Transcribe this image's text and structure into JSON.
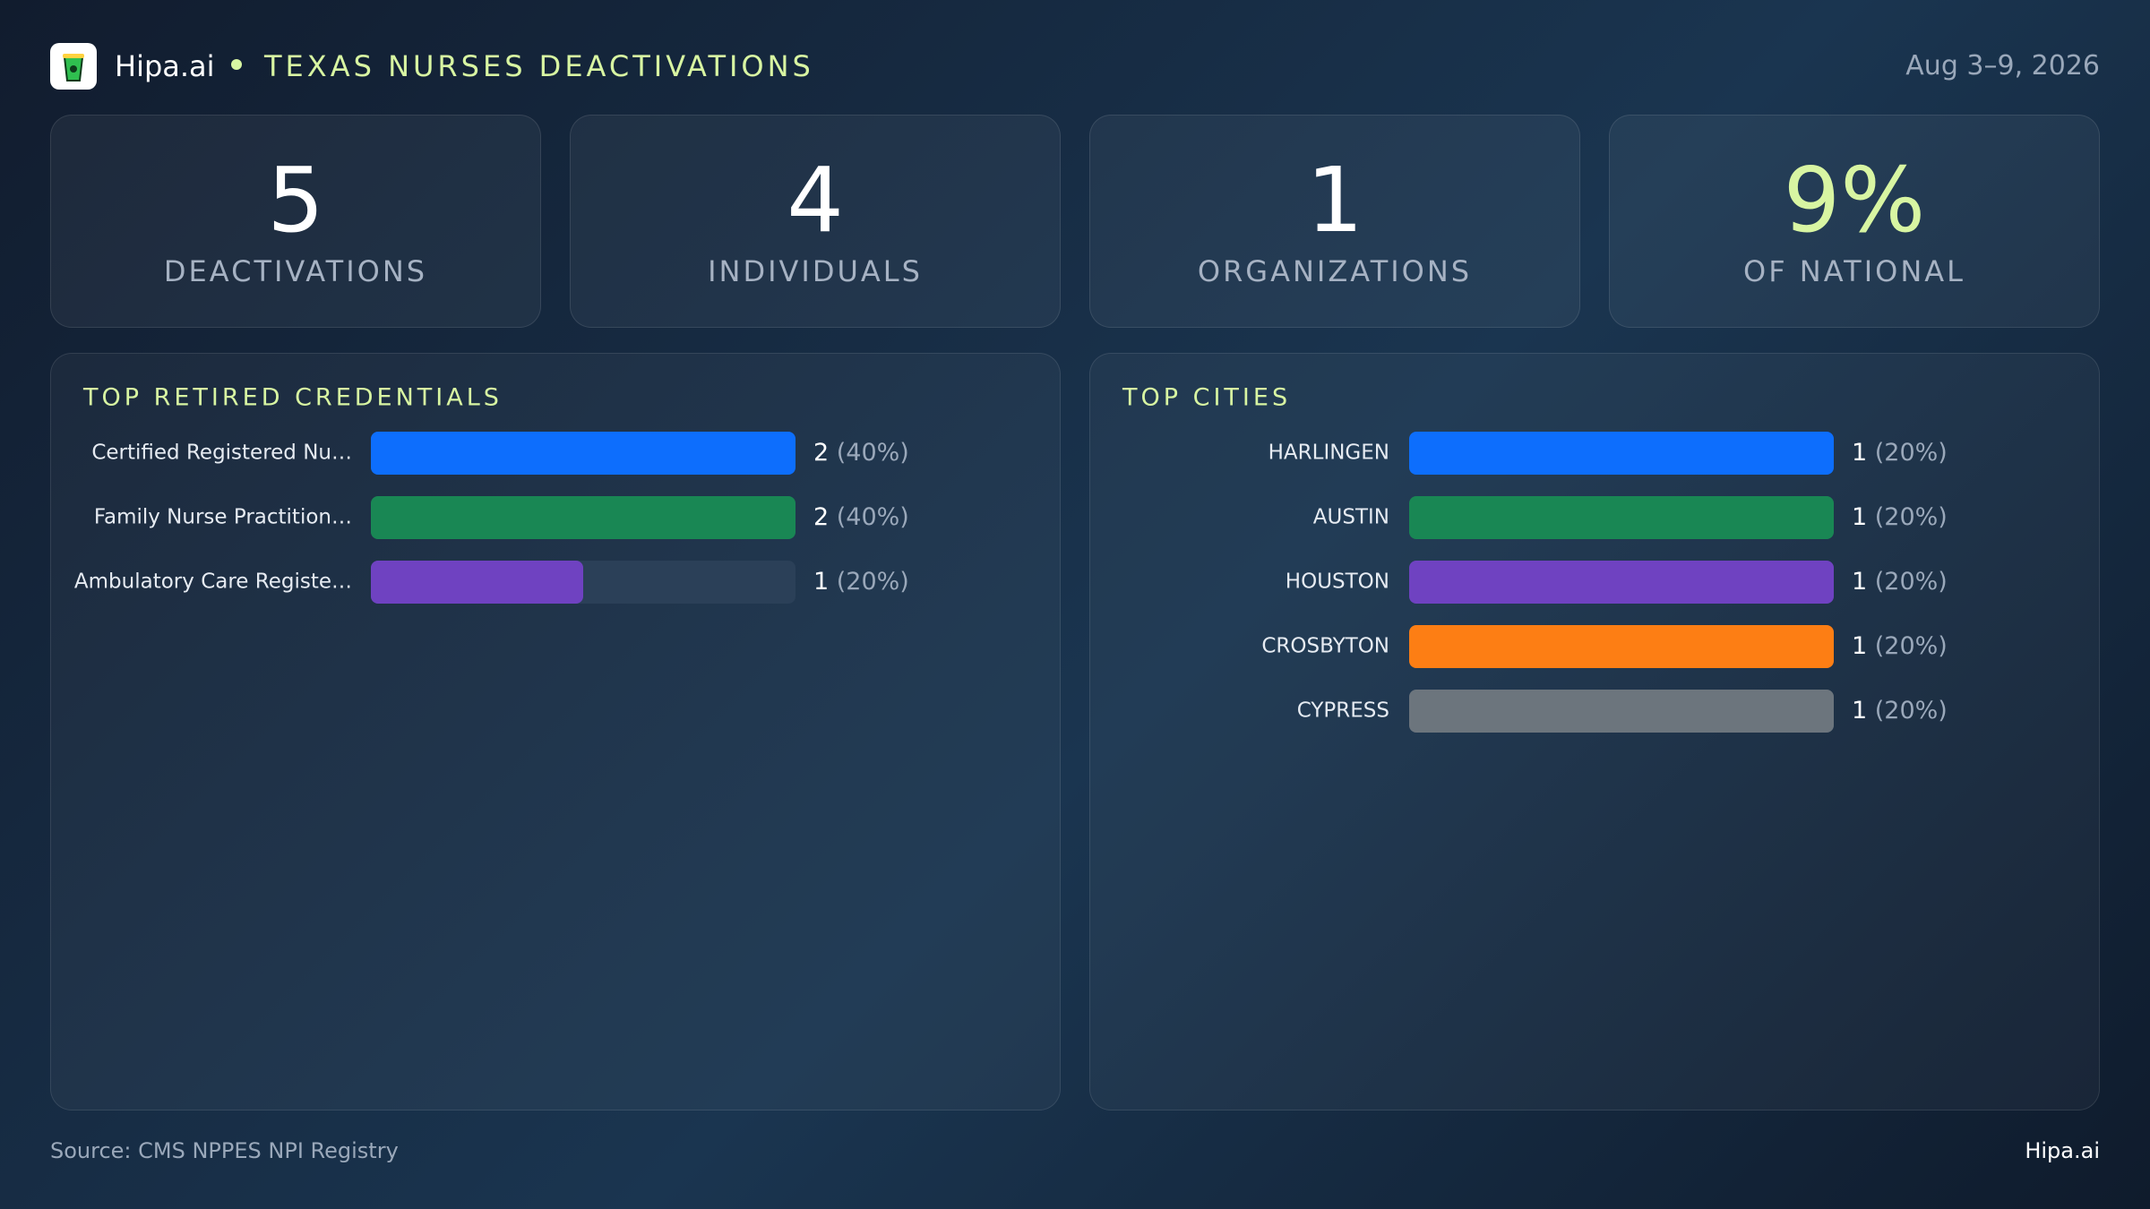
{
  "header": {
    "brand": "Hipa.ai",
    "title": "TEXAS NURSES DEACTIVATIONS",
    "date": "Aug 3–9, 2026"
  },
  "stats": [
    {
      "value": "5",
      "label": "DEACTIVATIONS"
    },
    {
      "value": "4",
      "label": "INDIVIDUALS"
    },
    {
      "value": "1",
      "label": "ORGANIZATIONS"
    },
    {
      "value": "9%",
      "label": "OF NATIONAL"
    }
  ],
  "chart_data": [
    {
      "type": "bar",
      "orientation": "horizontal",
      "title": "TOP RETIRED CREDENTIALS",
      "categories": [
        "Certified Registered Nu…",
        "Family Nurse Practition…",
        "Ambulatory Care Registe…"
      ],
      "values": [
        2,
        2,
        1
      ],
      "value_labels": [
        "2 (40%)",
        "2 (40%)",
        "1 (20%)"
      ],
      "colors": [
        "#0d6efd",
        "#198754",
        "#6f42c1"
      ],
      "xlim": [
        0,
        2
      ]
    },
    {
      "type": "bar",
      "orientation": "horizontal",
      "title": "TOP CITIES",
      "categories": [
        "HARLINGEN",
        "AUSTIN",
        "HOUSTON",
        "CROSBYTON",
        "CYPRESS"
      ],
      "values": [
        1,
        1,
        1,
        1,
        1
      ],
      "value_labels": [
        "1 (20%)",
        "1 (20%)",
        "1 (20%)",
        "1 (20%)",
        "1 (20%)"
      ],
      "colors": [
        "#0d6efd",
        "#198754",
        "#6f42c1",
        "#fd7e14",
        "#6c757d"
      ],
      "xlim": [
        0,
        1
      ]
    }
  ],
  "footer": {
    "source": "Source: CMS NPPES NPI Registry",
    "brand": "Hipa.ai"
  }
}
